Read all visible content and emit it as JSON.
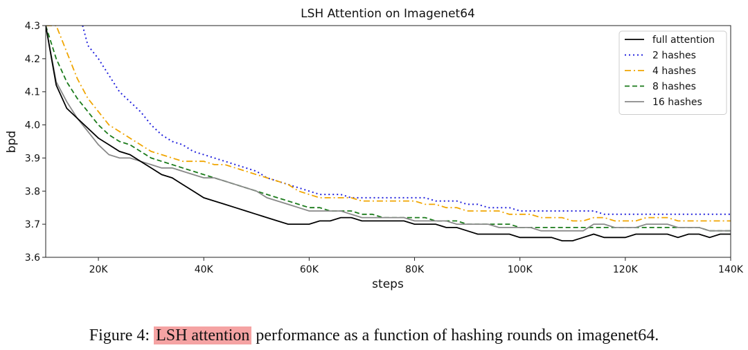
{
  "chart_data": {
    "type": "line",
    "title": "LSH Attention on Imagenet64",
    "xlabel": "steps",
    "ylabel": "bpd",
    "xlim": [
      10000,
      140000
    ],
    "ylim": [
      3.6,
      4.3
    ],
    "x_ticks": [
      20000,
      40000,
      60000,
      80000,
      100000,
      120000,
      140000
    ],
    "x_tick_labels": [
      "20K",
      "40K",
      "60K",
      "80K",
      "100K",
      "120K",
      "140K"
    ],
    "y_ticks": [
      3.6,
      3.7,
      3.8,
      3.9,
      4.0,
      4.1,
      4.2,
      4.3
    ],
    "y_tick_labels": [
      "3.6",
      "3.7",
      "3.8",
      "3.9",
      "4.0",
      "4.1",
      "4.2",
      "4.3"
    ],
    "legend_position": "top-right",
    "series": [
      {
        "name": "full attention",
        "color": "#000000",
        "dash": "solid",
        "x": [
          10000,
          12000,
          14000,
          16000,
          18000,
          20000,
          22000,
          24000,
          26000,
          28000,
          30000,
          32000,
          34000,
          36000,
          38000,
          40000,
          42000,
          44000,
          46000,
          48000,
          50000,
          52000,
          54000,
          56000,
          58000,
          60000,
          62000,
          64000,
          66000,
          68000,
          70000,
          72000,
          74000,
          76000,
          78000,
          80000,
          82000,
          84000,
          86000,
          88000,
          90000,
          92000,
          94000,
          96000,
          98000,
          100000,
          102000,
          104000,
          106000,
          108000,
          110000,
          112000,
          114000,
          116000,
          118000,
          120000,
          122000,
          124000,
          126000,
          128000,
          130000,
          132000,
          134000,
          136000,
          138000,
          140000
        ],
        "y": [
          4.3,
          4.12,
          4.05,
          4.02,
          3.99,
          3.96,
          3.94,
          3.92,
          3.91,
          3.89,
          3.87,
          3.85,
          3.84,
          3.82,
          3.8,
          3.78,
          3.77,
          3.76,
          3.75,
          3.74,
          3.73,
          3.72,
          3.71,
          3.7,
          3.7,
          3.7,
          3.71,
          3.71,
          3.72,
          3.72,
          3.71,
          3.71,
          3.71,
          3.71,
          3.71,
          3.7,
          3.7,
          3.7,
          3.69,
          3.69,
          3.68,
          3.67,
          3.67,
          3.67,
          3.67,
          3.66,
          3.66,
          3.66,
          3.66,
          3.65,
          3.65,
          3.66,
          3.67,
          3.66,
          3.66,
          3.66,
          3.67,
          3.67,
          3.67,
          3.67,
          3.66,
          3.67,
          3.67,
          3.66,
          3.67,
          3.67
        ]
      },
      {
        "name": "2 hashes",
        "color": "#2222dd",
        "dash": "dotted",
        "x": [
          17000,
          18000,
          20000,
          22000,
          24000,
          26000,
          28000,
          30000,
          32000,
          34000,
          36000,
          38000,
          40000,
          42000,
          44000,
          46000,
          48000,
          50000,
          52000,
          54000,
          56000,
          58000,
          60000,
          62000,
          64000,
          66000,
          68000,
          70000,
          72000,
          74000,
          76000,
          78000,
          80000,
          82000,
          84000,
          86000,
          88000,
          90000,
          92000,
          94000,
          96000,
          98000,
          100000,
          102000,
          104000,
          106000,
          108000,
          110000,
          112000,
          114000,
          116000,
          118000,
          120000,
          122000,
          124000,
          126000,
          128000,
          130000,
          132000,
          134000,
          136000,
          138000,
          140000
        ],
        "y": [
          4.3,
          4.24,
          4.2,
          4.15,
          4.1,
          4.07,
          4.04,
          4.0,
          3.97,
          3.95,
          3.94,
          3.92,
          3.91,
          3.9,
          3.89,
          3.88,
          3.87,
          3.86,
          3.84,
          3.83,
          3.82,
          3.81,
          3.8,
          3.79,
          3.79,
          3.79,
          3.78,
          3.78,
          3.78,
          3.78,
          3.78,
          3.78,
          3.78,
          3.78,
          3.77,
          3.77,
          3.77,
          3.76,
          3.76,
          3.75,
          3.75,
          3.75,
          3.74,
          3.74,
          3.74,
          3.74,
          3.74,
          3.74,
          3.74,
          3.74,
          3.73,
          3.73,
          3.73,
          3.73,
          3.73,
          3.73,
          3.73,
          3.73,
          3.73,
          3.73,
          3.73,
          3.73,
          3.73
        ]
      },
      {
        "name": "4 hashes",
        "color": "#f0a500",
        "dash": "dashdot",
        "x": [
          10000,
          12000,
          14000,
          16000,
          18000,
          20000,
          22000,
          24000,
          26000,
          28000,
          30000,
          32000,
          34000,
          36000,
          38000,
          40000,
          42000,
          44000,
          46000,
          48000,
          50000,
          52000,
          54000,
          56000,
          58000,
          60000,
          62000,
          64000,
          66000,
          68000,
          70000,
          72000,
          74000,
          76000,
          78000,
          80000,
          82000,
          84000,
          86000,
          88000,
          90000,
          92000,
          94000,
          96000,
          98000,
          100000,
          102000,
          104000,
          106000,
          108000,
          110000,
          112000,
          114000,
          116000,
          118000,
          120000,
          122000,
          124000,
          126000,
          128000,
          130000,
          132000,
          134000,
          136000,
          138000,
          140000
        ],
        "y": [
          4.3,
          4.3,
          4.22,
          4.14,
          4.08,
          4.04,
          4.0,
          3.98,
          3.96,
          3.94,
          3.92,
          3.91,
          3.9,
          3.89,
          3.89,
          3.89,
          3.88,
          3.88,
          3.87,
          3.86,
          3.85,
          3.84,
          3.83,
          3.82,
          3.8,
          3.79,
          3.78,
          3.78,
          3.78,
          3.78,
          3.77,
          3.77,
          3.77,
          3.77,
          3.77,
          3.77,
          3.76,
          3.76,
          3.75,
          3.75,
          3.74,
          3.74,
          3.74,
          3.74,
          3.73,
          3.73,
          3.73,
          3.72,
          3.72,
          3.72,
          3.71,
          3.71,
          3.72,
          3.72,
          3.71,
          3.71,
          3.71,
          3.72,
          3.72,
          3.72,
          3.71,
          3.71,
          3.71,
          3.71,
          3.71,
          3.71
        ]
      },
      {
        "name": "8 hashes",
        "color": "#1a7a1a",
        "dash": "dashed",
        "x": [
          10000,
          12000,
          14000,
          16000,
          18000,
          20000,
          22000,
          24000,
          26000,
          28000,
          30000,
          32000,
          34000,
          36000,
          38000,
          40000,
          42000,
          44000,
          46000,
          48000,
          50000,
          52000,
          54000,
          56000,
          58000,
          60000,
          62000,
          64000,
          66000,
          68000,
          70000,
          72000,
          74000,
          76000,
          78000,
          80000,
          82000,
          84000,
          86000,
          88000,
          90000,
          92000,
          94000,
          96000,
          98000,
          100000,
          102000,
          104000,
          106000,
          108000,
          110000,
          112000,
          114000,
          116000,
          118000,
          120000,
          122000,
          124000,
          126000,
          128000,
          130000,
          132000,
          134000,
          136000,
          138000,
          140000
        ],
        "y": [
          4.3,
          4.2,
          4.13,
          4.08,
          4.04,
          4.0,
          3.97,
          3.95,
          3.94,
          3.92,
          3.9,
          3.89,
          3.88,
          3.87,
          3.86,
          3.85,
          3.84,
          3.83,
          3.82,
          3.81,
          3.8,
          3.79,
          3.78,
          3.77,
          3.76,
          3.75,
          3.75,
          3.74,
          3.74,
          3.74,
          3.73,
          3.73,
          3.72,
          3.72,
          3.72,
          3.72,
          3.72,
          3.71,
          3.71,
          3.71,
          3.7,
          3.7,
          3.7,
          3.7,
          3.7,
          3.69,
          3.69,
          3.69,
          3.69,
          3.69,
          3.69,
          3.69,
          3.69,
          3.69,
          3.69,
          3.69,
          3.69,
          3.69,
          3.69,
          3.69,
          3.69,
          3.69,
          3.69,
          3.68,
          3.68,
          3.68
        ]
      },
      {
        "name": "16 hashes",
        "color": "#888888",
        "dash": "solid",
        "x": [
          10000,
          12000,
          14000,
          16000,
          18000,
          20000,
          22000,
          24000,
          26000,
          28000,
          30000,
          32000,
          34000,
          36000,
          38000,
          40000,
          42000,
          44000,
          46000,
          48000,
          50000,
          52000,
          54000,
          56000,
          58000,
          60000,
          62000,
          64000,
          66000,
          68000,
          70000,
          72000,
          74000,
          76000,
          78000,
          80000,
          82000,
          84000,
          86000,
          88000,
          90000,
          92000,
          94000,
          96000,
          98000,
          100000,
          102000,
          104000,
          106000,
          108000,
          110000,
          112000,
          114000,
          116000,
          118000,
          120000,
          122000,
          124000,
          126000,
          128000,
          130000,
          132000,
          134000,
          136000,
          138000,
          140000
        ],
        "y": [
          4.3,
          4.13,
          4.07,
          4.02,
          3.98,
          3.94,
          3.91,
          3.9,
          3.9,
          3.89,
          3.88,
          3.87,
          3.87,
          3.86,
          3.85,
          3.84,
          3.84,
          3.83,
          3.82,
          3.81,
          3.8,
          3.78,
          3.77,
          3.76,
          3.75,
          3.74,
          3.74,
          3.74,
          3.74,
          3.73,
          3.72,
          3.72,
          3.72,
          3.72,
          3.72,
          3.71,
          3.71,
          3.71,
          3.71,
          3.7,
          3.7,
          3.7,
          3.7,
          3.69,
          3.69,
          3.69,
          3.69,
          3.68,
          3.68,
          3.68,
          3.68,
          3.68,
          3.7,
          3.7,
          3.69,
          3.69,
          3.69,
          3.7,
          3.7,
          3.7,
          3.69,
          3.69,
          3.69,
          3.68,
          3.68,
          3.68
        ]
      }
    ]
  },
  "caption": {
    "prefix": "Figure 4: ",
    "highlight": "LSH attention",
    "suffix": " performance as a function of hashing rounds on imagenet64."
  }
}
